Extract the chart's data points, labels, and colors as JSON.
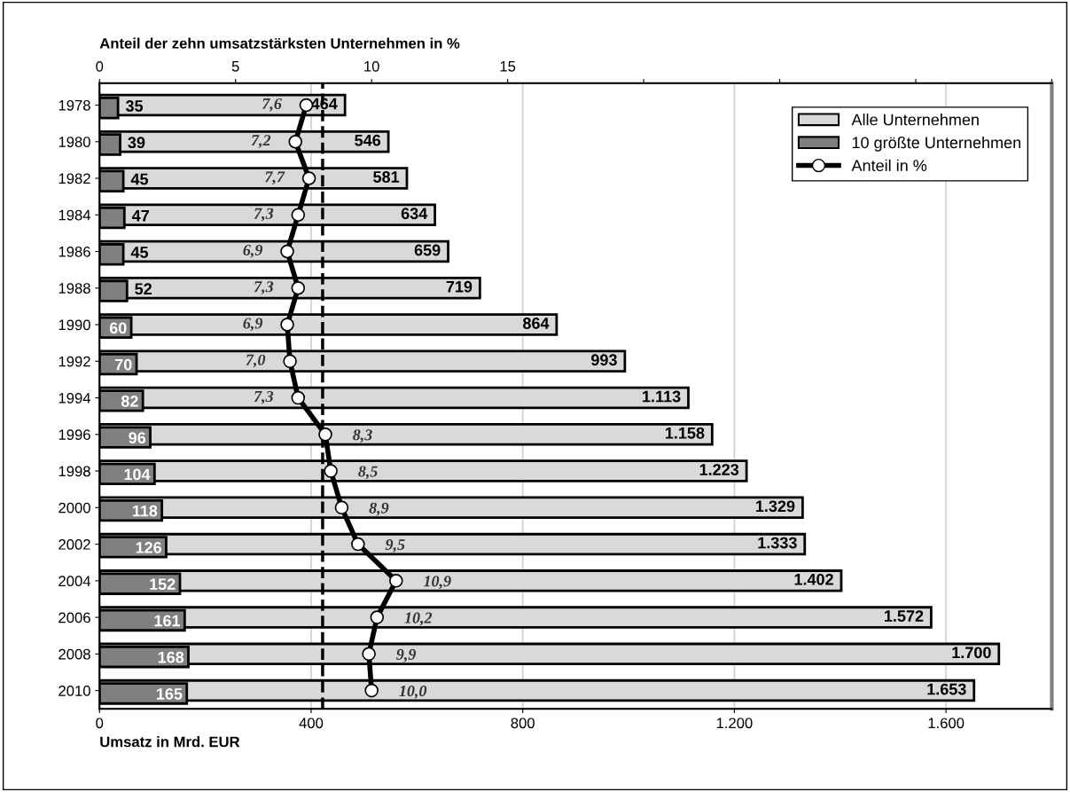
{
  "chart_data": {
    "type": "bar",
    "orientation": "horizontal",
    "x2label": "Anteil der zehn umsatzstärksten Unternehmen in %",
    "xlabel": "Umsatz in Mrd. EUR",
    "categories": [
      "1978",
      "1980",
      "1982",
      "1984",
      "1986",
      "1988",
      "1990",
      "1992",
      "1994",
      "1996",
      "1998",
      "2000",
      "2002",
      "2004",
      "2006",
      "2008",
      "2010"
    ],
    "series": [
      {
        "name": "Alle Unternehmen",
        "color": "#d9d9d9",
        "values": [
          464,
          546,
          581,
          634,
          659,
          719,
          864,
          993,
          1113,
          1158,
          1223,
          1329,
          1333,
          1402,
          1572,
          1700,
          1653
        ],
        "value_labels": [
          "464",
          "546",
          "581",
          "634",
          "659",
          "719",
          "864",
          "993",
          "1.113",
          "1.158",
          "1.223",
          "1.329",
          "1.333",
          "1.402",
          "1.572",
          "1.700",
          "1.653"
        ]
      },
      {
        "name": "10 größte Unternehmen",
        "color": "#808080",
        "values": [
          35,
          39,
          45,
          47,
          45,
          52,
          60,
          70,
          82,
          96,
          104,
          118,
          126,
          152,
          161,
          168,
          165
        ],
        "value_labels": [
          "35",
          "39",
          "45",
          "47",
          "45",
          "52",
          "60",
          "70",
          "82",
          "96",
          "104",
          "118",
          "126",
          "152",
          "161",
          "168",
          "165"
        ]
      },
      {
        "name": "Anteil in %",
        "type": "line",
        "axis": "x2",
        "color": "#000000",
        "marker": "circle",
        "values": [
          7.6,
          7.2,
          7.7,
          7.3,
          6.9,
          7.3,
          6.9,
          7.0,
          7.3,
          8.3,
          8.5,
          8.9,
          9.5,
          10.9,
          10.2,
          9.9,
          10.0
        ],
        "value_labels": [
          "7,6",
          "7,2",
          "7,7",
          "7,3",
          "6,9",
          "7,3",
          "6,9",
          "7,0",
          "7,3",
          "8,3",
          "8,5",
          "8,9",
          "9,5",
          "10,9",
          "10,2",
          "9,9",
          "10,0"
        ]
      }
    ],
    "xlim": [
      0,
      1800
    ],
    "xticks": [
      0,
      400,
      800,
      {
        "value": 1200,
        "label": "1.200"
      },
      {
        "value": 1600,
        "label": "1.600"
      }
    ],
    "x2lim": [
      0,
      35
    ],
    "x2ticks": [
      0,
      5,
      10,
      15,
      {
        "value": 20,
        "label": null
      },
      {
        "value": 25,
        "label": null
      },
      {
        "value": 30,
        "label": null
      },
      {
        "value": 35,
        "label": null
      }
    ],
    "ref_lines": [
      {
        "axis": "x2",
        "value": 8.2,
        "color": "#000000",
        "line_style": "dashed"
      }
    ],
    "grid": "x",
    "legend": "top right"
  }
}
